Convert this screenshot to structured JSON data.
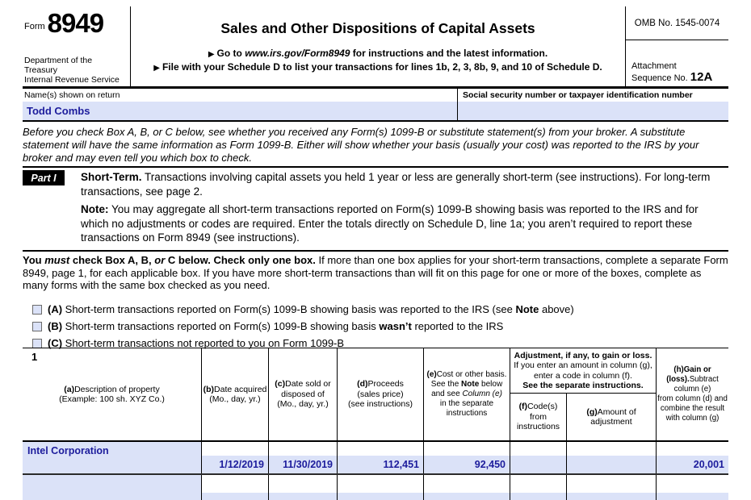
{
  "colors": {
    "field_fill": "#dbe2f8",
    "entry_text": "#1c1c9c"
  },
  "form": {
    "form_word": "Form",
    "form_number": "8949",
    "dept_line1": "Department of the Treasury",
    "dept_line2": "Internal Revenue Service",
    "title": "Sales and Other Dispositions of Capital Assets",
    "goto_arrow": "▶",
    "goto_pre": "Go to ",
    "goto_url": "www.irs.gov/Form8949",
    "goto_post": " for instructions and the latest information.",
    "file_arrow": "▶",
    "file_text": "File with your Schedule D to list your transactions for lines 1b, 2, 3, 8b, 9, and 10 of Schedule D.",
    "omb": "OMB No. 1545-0074",
    "attachment_line1": "Attachment",
    "attachment_line2": "Sequence No. ",
    "attachment_seq": "12A"
  },
  "taxpayer": {
    "name_label": "Name(s) shown on return",
    "name_value": "Todd Combs",
    "ssn_label": "Social security number or taxpayer identification number",
    "ssn_value": ""
  },
  "intro_italic": "Before you check Box A, B, or C below, see whether you received any Form(s) 1099-B or substitute statement(s) from your broker. A substitute statement will have the same information as Form 1099-B. Either will show whether your basis (usually your cost) was reported to the IRS by your broker and may even tell you which box to check.",
  "part1": {
    "label": "Part I",
    "title_bold": "Short-Term.",
    "title_rest": " Transactions involving capital assets you held 1 year or less are generally short-term (see instructions). For long-term transactions, see page 2.",
    "note_bold": "Note:",
    "note_rest": " You may aggregate all short-term transactions reported on Form(s) 1099-B showing basis was reported to the IRS and for which no adjustments or codes are required. Enter the totals directly on Schedule D, line 1a; you aren’t required to report these transactions on Form 8949 (see instructions)."
  },
  "check_instructions": {
    "b1": "You ",
    "i1": "must",
    "b2": " check Box A, B, ",
    "i2": "or",
    "b3": " C below. Check only one box. ",
    "rest": "If more than one box applies for your short-term transactions, complete a separate Form 8949, page 1, for each applicable box. If you have more short-term transactions than will fit on this page for one or more of the boxes, complete as many forms with the same box checked as you need."
  },
  "checkboxes": {
    "a": {
      "tag": "(A)",
      "pre": " Short-term transactions reported on Form(s) 1099-B showing basis was reported to the IRS (see ",
      "bold": "Note",
      "post": " above)"
    },
    "b": {
      "tag": "(B)",
      "pre": " Short-term transactions reported on Form(s) 1099-B showing basis ",
      "bold": "wasn’t",
      "post": " reported to the IRS"
    },
    "c": {
      "tag": "(C)",
      "pre": " Short-term transactions not reported to you on Form 1099-B",
      "bold": "",
      "post": ""
    }
  },
  "table": {
    "line_number": "1",
    "headers": {
      "a": {
        "tag": "(a)",
        "text": "Description of property\n(Example: 100 sh. XYZ Co.)"
      },
      "b": {
        "tag": "(b)",
        "text": "Date acquired\n(Mo., day, yr.)"
      },
      "c": {
        "tag": "(c)",
        "text": "Date sold or\ndisposed of\n(Mo., day, yr.)"
      },
      "d": {
        "tag": "(d)",
        "text": "Proceeds\n(sales price)\n(see instructions)"
      },
      "e": {
        "tag": "(e)",
        "pre": "Cost or other basis.\nSee the ",
        "bold": "Note",
        "mid": " below\nand see ",
        "italic": "Column (e)",
        "post": "\nin the separate\ninstructions"
      },
      "adj": {
        "bold1": "Adjustment, if any, to gain or loss.",
        "line2": "If you enter an amount in column (g),\nenter a code in column (f).",
        "bold2": "See the separate instructions."
      },
      "f": {
        "tag": "(f)",
        "text": "Code(s) from\ninstructions"
      },
      "g": {
        "tag": "(g)",
        "text": "Amount of\nadjustment"
      },
      "h": {
        "tag": "(h)",
        "bold": "Gain or (loss).",
        "text": "Subtract column (e)\nfrom column (d) and\ncombine the result\nwith column (g)"
      }
    },
    "rows": [
      {
        "description": "Intel Corporation",
        "date_acquired": "1/12/2019",
        "date_sold": "11/30/2019",
        "proceeds": "112,451",
        "cost": "92,450",
        "code": "",
        "adjustment": "",
        "gain": "20,001"
      },
      {
        "description": "",
        "date_acquired": "",
        "date_sold": "",
        "proceeds": "",
        "cost": "",
        "code": "",
        "adjustment": "",
        "gain": ""
      }
    ]
  }
}
